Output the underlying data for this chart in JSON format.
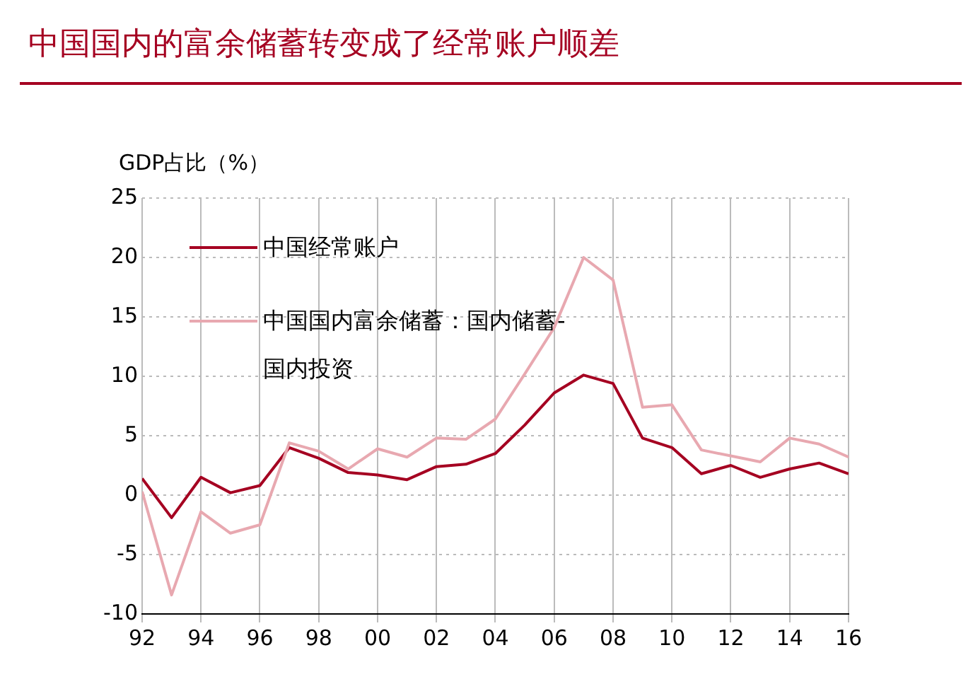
{
  "chart_data": {
    "type": "line",
    "title": "中国国内的富余储蓄转变成了经常账户顺差",
    "ylabel": "GDP占比（%）",
    "x": [
      1992,
      1993,
      1994,
      1995,
      1996,
      1997,
      1998,
      1999,
      2000,
      2001,
      2002,
      2003,
      2004,
      2005,
      2006,
      2007,
      2008,
      2009,
      2010,
      2011,
      2012,
      2013,
      2014,
      2015,
      2016
    ],
    "series": [
      {
        "name": "中国经常账户",
        "color": "#a50021",
        "values": [
          1.4,
          -1.9,
          1.5,
          0.2,
          0.8,
          4.0,
          3.1,
          1.9,
          1.7,
          1.3,
          2.4,
          2.6,
          3.5,
          5.9,
          8.6,
          10.1,
          9.4,
          4.8,
          4.0,
          1.8,
          2.5,
          1.5,
          2.2,
          2.7,
          1.8
        ]
      },
      {
        "name": "中国国内富余储蓄：国内储蓄-国内投资",
        "color": "#e8a8b0",
        "values": [
          0.3,
          -8.4,
          -1.4,
          -3.2,
          -2.5,
          4.4,
          3.7,
          2.2,
          3.9,
          3.2,
          4.8,
          4.7,
          6.4,
          10.2,
          14.1,
          20.0,
          18.1,
          7.4,
          7.6,
          3.8,
          3.3,
          2.8,
          4.8,
          4.3,
          3.2
        ]
      }
    ],
    "xlim": [
      1992,
      2016
    ],
    "xticks": [
      {
        "value": 1992,
        "label": "92"
      },
      {
        "value": 1994,
        "label": "94"
      },
      {
        "value": 1996,
        "label": "96"
      },
      {
        "value": 1998,
        "label": "98"
      },
      {
        "value": 2000,
        "label": "00"
      },
      {
        "value": 2002,
        "label": "02"
      },
      {
        "value": 2004,
        "label": "04"
      },
      {
        "value": 2006,
        "label": "06"
      },
      {
        "value": 2008,
        "label": "08"
      },
      {
        "value": 2010,
        "label": "10"
      },
      {
        "value": 2012,
        "label": "12"
      },
      {
        "value": 2014,
        "label": "14"
      },
      {
        "value": 2016,
        "label": "16"
      }
    ],
    "ylim": [
      -10,
      25
    ],
    "yticks": [
      -10,
      -5,
      0,
      5,
      10,
      15,
      20,
      25
    ],
    "grid": true,
    "legend": "top left",
    "marker": "none",
    "line_style": "solid"
  }
}
